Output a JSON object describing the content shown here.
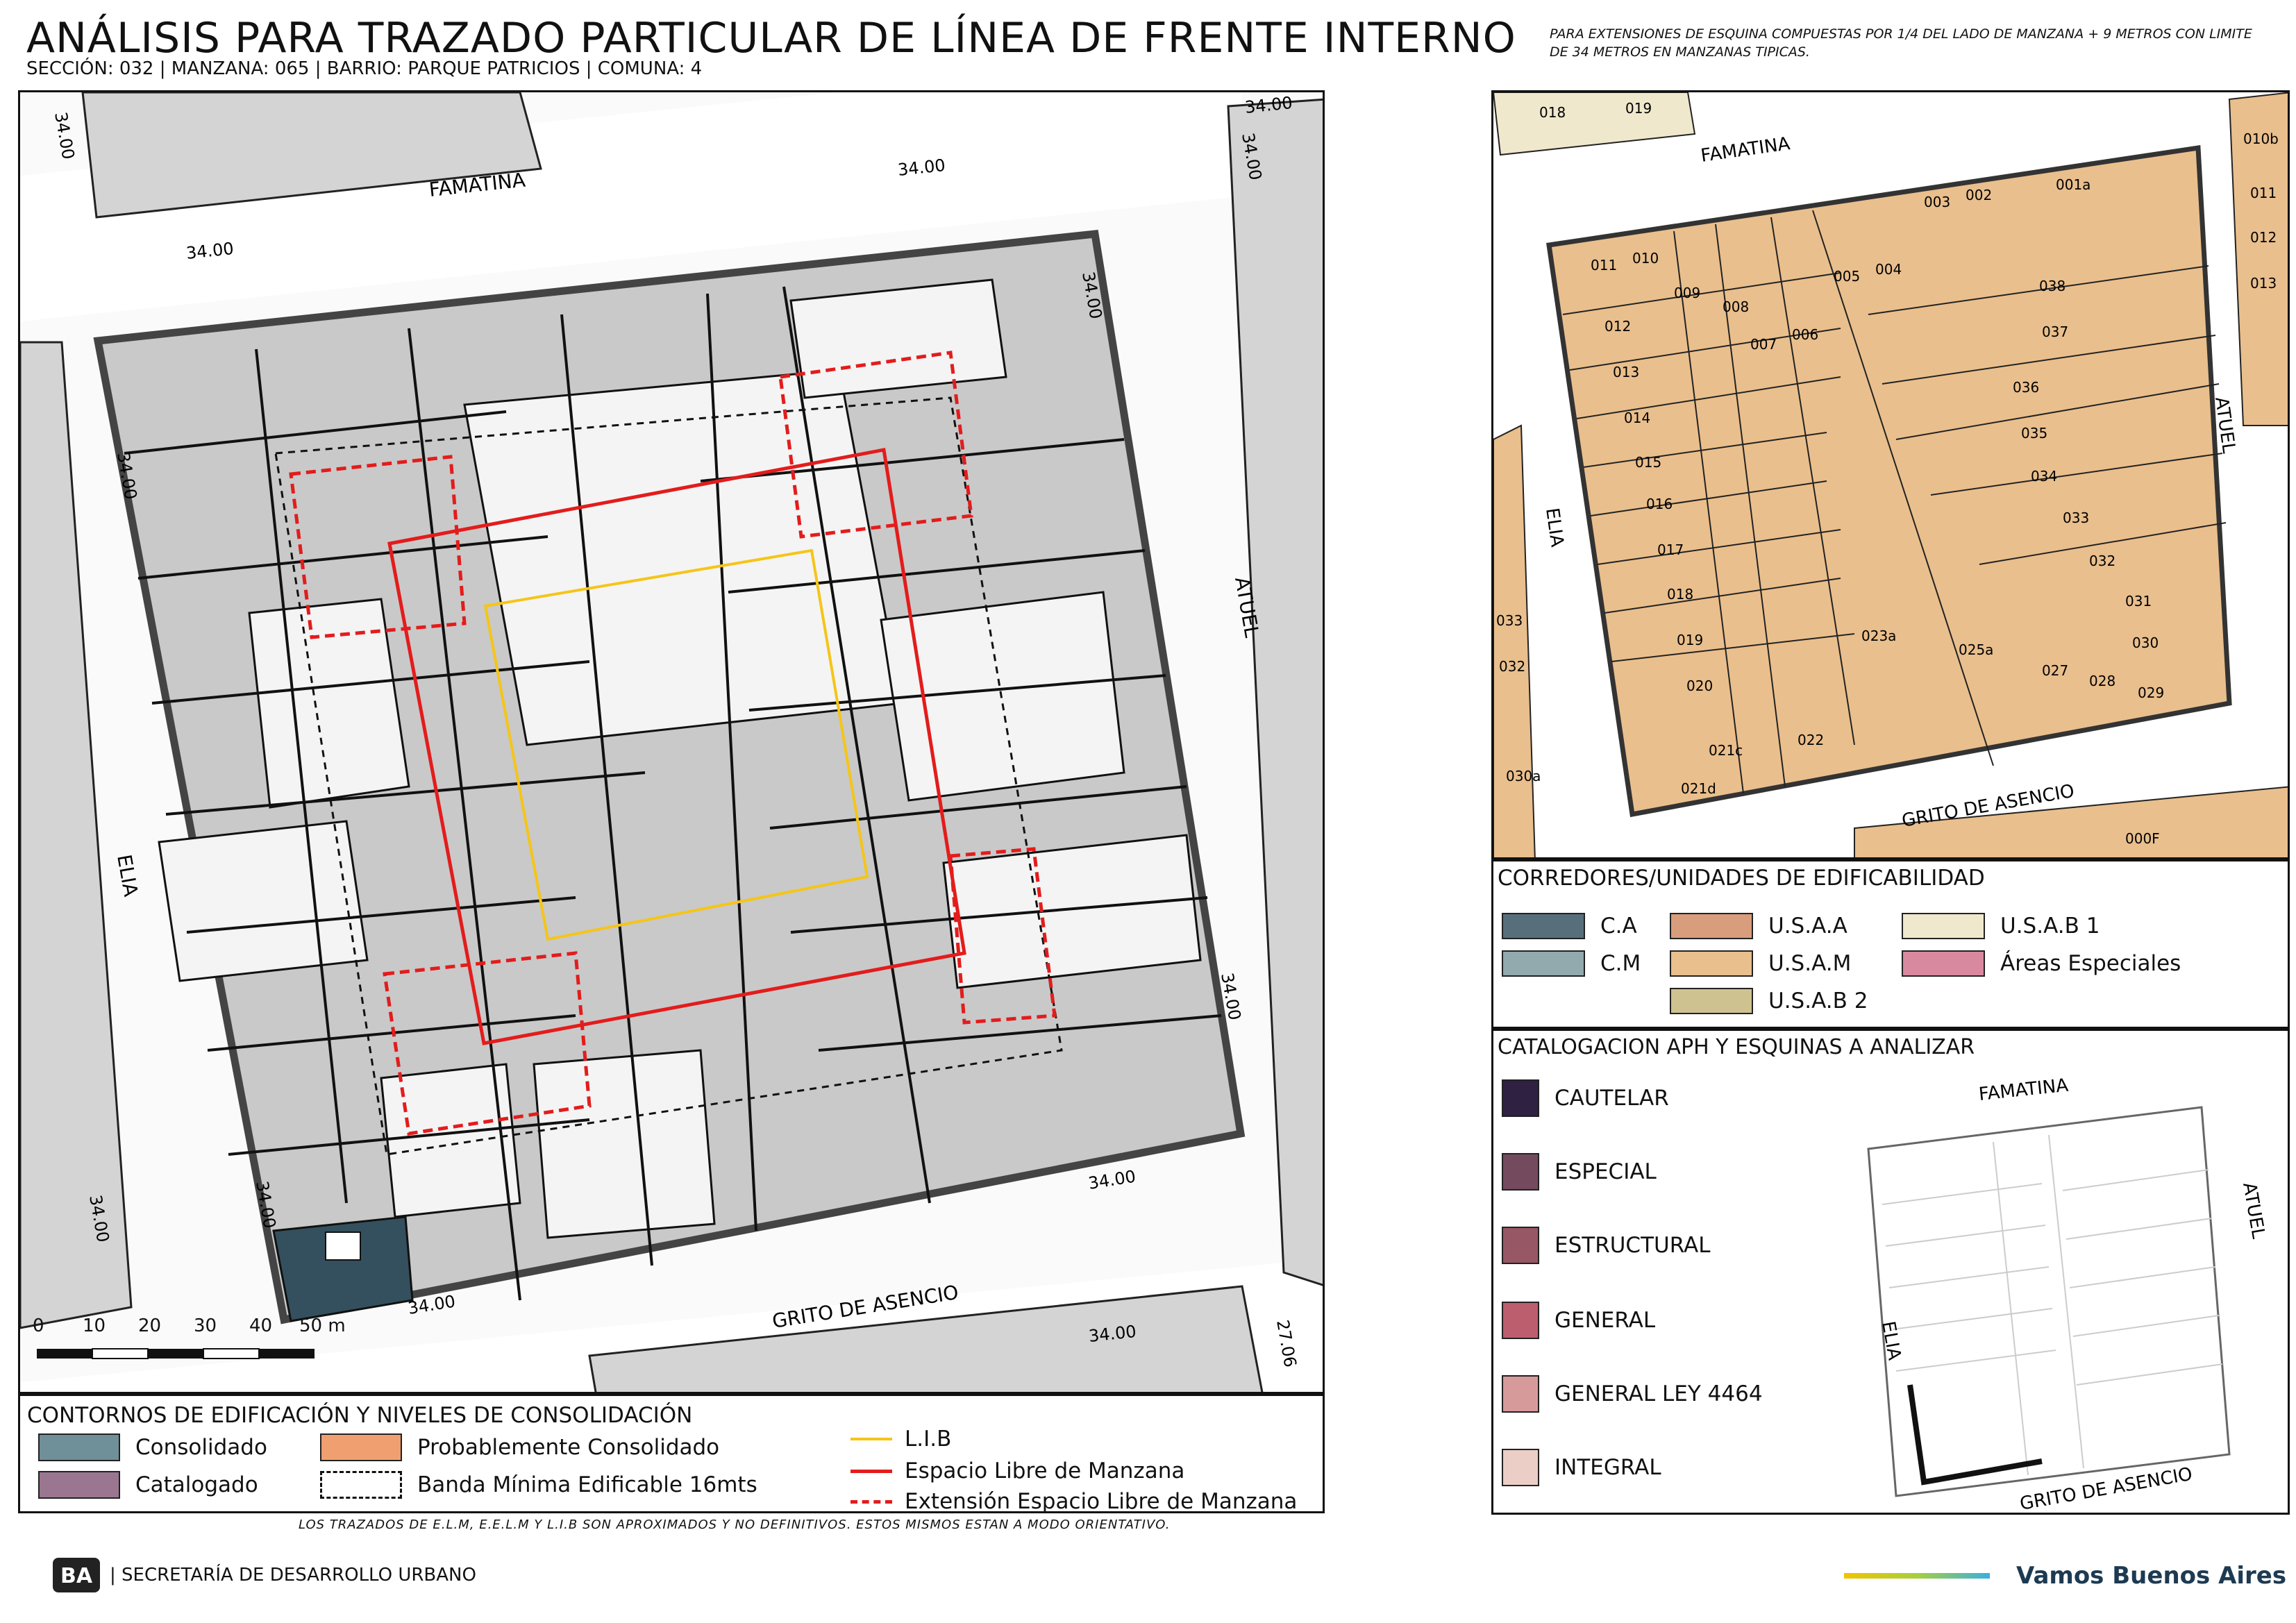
{
  "header": {
    "title": "ANÁLISIS PARA TRAZADO PARTICULAR DE LÍNEA DE FRENTE INTERNO",
    "subtitle": "SECCIÓN: 032 |  MANZANA: 065 | BARRIO: PARQUE PATRICIOS | COMUNA: 4",
    "note": "PARA EXTENSIONES DE ESQUINA COMPUESTAS POR 1/4 DEL LADO DE MANZANA + 9 METROS CON LIMITE DE 34 METROS EN MANZANAS TIPICAS."
  },
  "main_map": {
    "streets": {
      "top": "FAMATINA",
      "left": "ELIA",
      "right": "ATUEL",
      "bottom": "GRITO DE ASENCIO"
    },
    "dimension_label": "34.00",
    "dimension_label_alt": "27.06",
    "scale_labels": [
      "0",
      "10",
      "20",
      "30",
      "40",
      "50 m"
    ]
  },
  "legend_left": {
    "title": "CONTORNOS DE EDIFICACIÓN Y NIVELES DE CONSOLIDACIÓN",
    "items": [
      {
        "label": "Consolidado",
        "color": "#6f8f99"
      },
      {
        "label": "Catalogado",
        "color": "#9b7690"
      },
      {
        "label": "Probablemente Consolidado",
        "color": "#f0a070"
      },
      {
        "label": "Banda Mínima Edificable 16mts",
        "color": "#ffffff"
      }
    ],
    "lines": [
      {
        "label": "L.I.B",
        "color": "#f5c518"
      },
      {
        "label": "Espacio Libre de Manzana",
        "color": "#e31c1c"
      },
      {
        "label": "Extensión Espacio Libre de Manzana",
        "color": "#e31c1c"
      }
    ]
  },
  "parcel_map": {
    "streets": {
      "top": "FAMATINA",
      "left": "ELIA",
      "right": "ATUEL",
      "bottom": "GRITO DE ASENCIO"
    },
    "parcels": [
      "001a",
      "002",
      "003",
      "004",
      "005",
      "006",
      "007",
      "008",
      "009",
      "010",
      "011",
      "012",
      "013",
      "014",
      "015",
      "016",
      "017",
      "018",
      "019",
      "020",
      "021c",
      "021d",
      "022",
      "023a",
      "025a",
      "027",
      "028",
      "029",
      "030",
      "031",
      "032",
      "033",
      "034",
      "035",
      "036",
      "037",
      "038"
    ],
    "neighbors": [
      "018",
      "019",
      "010b",
      "011",
      "012",
      "013",
      "033",
      "032",
      "030a",
      "000F"
    ]
  },
  "corredores": {
    "title": "CORREDORES/UNIDADES DE EDIFICABILIDAD",
    "items": [
      {
        "label": "C.A",
        "color": "#566f7b"
      },
      {
        "label": "C.M",
        "color": "#92a9ae"
      },
      {
        "label": "U.S.A.A",
        "color": "#d79d7c"
      },
      {
        "label": "U.S.A.M",
        "color": "#e9bf8d"
      },
      {
        "label": "U.S.A.B 2",
        "color": "#cfc291"
      },
      {
        "label": "U.S.A.B 1",
        "color": "#efe8cc"
      },
      {
        "label": "Áreas Especiales",
        "color": "#d9899f"
      }
    ]
  },
  "catalogacion": {
    "title": "CATALOGACION APH Y ESQUINAS A ANALIZAR",
    "items": [
      {
        "label": "CAUTELAR",
        "color": "#2e2142"
      },
      {
        "label": "ESPECIAL",
        "color": "#744a5f"
      },
      {
        "label": "ESTRUCTURAL",
        "color": "#975764"
      },
      {
        "label": "GENERAL",
        "color": "#bd5e6e"
      },
      {
        "label": "GENERAL LEY 4464",
        "color": "#d79a9b"
      },
      {
        "label": "INTEGRAL",
        "color": "#ebcec6"
      }
    ]
  },
  "footer": {
    "disclaimer": "LOS TRAZADOS DE E.L.M, E.E.L.M Y L.I.B SON APROXIMADOS Y NO DEFINITIVOS. ESTOS MISMOS ESTAN A MODO ORIENTATIVO.",
    "logo_text": "BA",
    "department": "| SECRETARÍA DE DESARROLLO URBANO",
    "brand": "Vamos Buenos Aires"
  }
}
